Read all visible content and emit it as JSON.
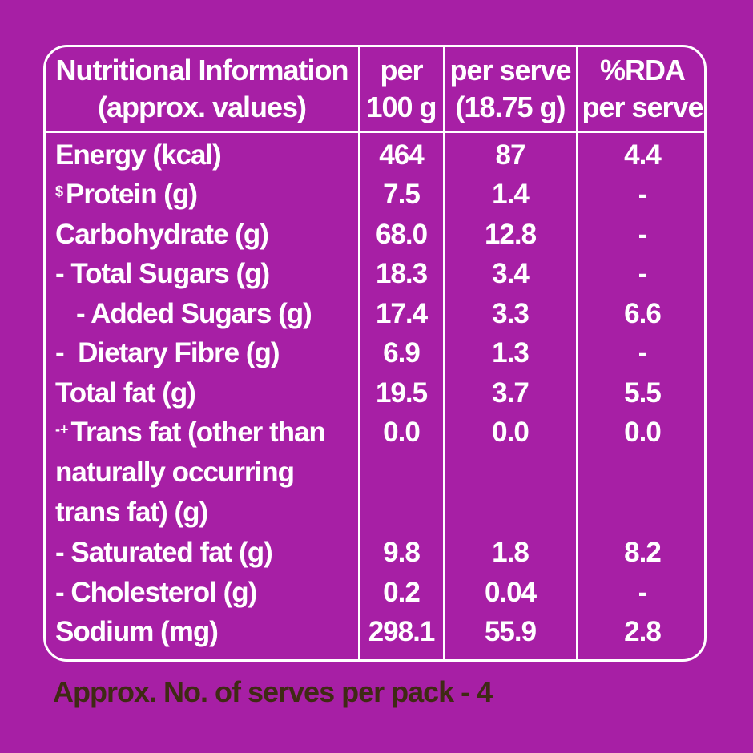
{
  "header": {
    "col1_line1": "Nutritional Information",
    "col1_line2": "(approx. values)",
    "col2_line1": "per",
    "col2_line2": "100 g",
    "col3_line1": "per serve",
    "col3_line2": "(18.75 g)",
    "col4_line1": "%RDA",
    "col4_line2": "per serve"
  },
  "rows": [
    {
      "label": "Energy (kcal)",
      "per100": "464",
      "serve": "87",
      "rda": "4.4"
    },
    {
      "sup": "$",
      "label": "Protein (g)",
      "per100": "7.5",
      "serve": "1.4",
      "rda": "-"
    },
    {
      "label": "Carbohydrate (g)",
      "per100": "68.0",
      "serve": "12.8",
      "rda": "-"
    },
    {
      "label": "- Total Sugars (g)",
      "per100": "18.3",
      "serve": "3.4",
      "rda": "-"
    },
    {
      "label": "- Added Sugars (g)",
      "per100": "17.4",
      "serve": "3.3",
      "rda": "6.6"
    },
    {
      "label": "-  Dietary Fibre (g)",
      "per100": "6.9",
      "serve": "1.3",
      "rda": "-"
    },
    {
      "label": "Total fat (g)",
      "per100": "19.5",
      "serve": "3.7",
      "rda": "5.5"
    },
    {
      "sup": "-+",
      "label_line1": "Trans fat (other than",
      "label_line2": "naturally occurring",
      "label_line3": "trans fat) (g)",
      "per100": "0.0",
      "serve": "0.0",
      "rda": "0.0"
    },
    {
      "label": "- Saturated fat (g)",
      "per100": "9.8",
      "serve": "1.8",
      "rda": "8.2"
    },
    {
      "label": "- Cholesterol (g)",
      "per100": "0.2",
      "serve": "0.04",
      "rda": "-"
    },
    {
      "label": "Sodium (mg)",
      "per100": "298.1",
      "serve": "55.9",
      "rda": "2.8"
    }
  ],
  "footer": "Approx. No. of serves per pack - 4",
  "colors": {
    "background": "#a71fa5",
    "text": "#ffffff",
    "footer_text": "#3f2a14"
  }
}
